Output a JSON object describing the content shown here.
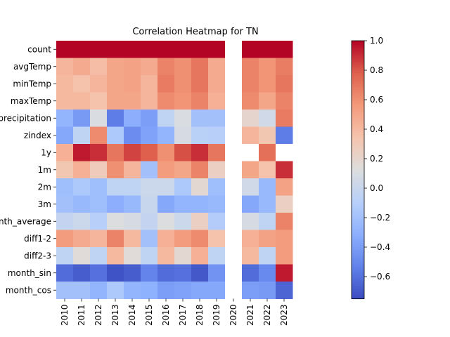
{
  "chart_data": {
    "type": "heatmap",
    "title": "Correlation Heatmap for TN",
    "xlabel": "",
    "ylabel": "",
    "x_categories": [
      "2010",
      "2011",
      "2012",
      "2013",
      "2014",
      "2015",
      "2016",
      "2017",
      "2018",
      "2019",
      "2020",
      "2021",
      "2022",
      "2023"
    ],
    "y_categories": [
      "count",
      "avgTemp",
      "minTemp",
      "maxTemp",
      "precipitation",
      "zindex",
      "1y",
      "1m",
      "2m",
      "3m",
      "month_average",
      "diff1-2",
      "diff2-3",
      "month_sin",
      "month_cos"
    ],
    "values": [
      [
        1.0,
        1.0,
        1.0,
        1.0,
        1.0,
        1.0,
        1.0,
        1.0,
        1.0,
        1.0,
        null,
        1.0,
        1.0,
        1.0
      ],
      [
        0.42,
        0.48,
        0.38,
        0.5,
        0.52,
        0.48,
        0.65,
        0.6,
        0.7,
        0.48,
        null,
        0.65,
        0.58,
        0.67
      ],
      [
        0.4,
        0.35,
        0.42,
        0.5,
        0.52,
        0.42,
        0.68,
        0.6,
        0.7,
        0.48,
        null,
        0.65,
        0.58,
        0.7
      ],
      [
        0.4,
        0.4,
        0.35,
        0.5,
        0.5,
        0.42,
        0.62,
        0.58,
        0.65,
        0.45,
        null,
        0.62,
        0.5,
        0.65
      ],
      [
        -0.28,
        -0.42,
        0.1,
        -0.55,
        -0.32,
        -0.4,
        -0.05,
        0.1,
        -0.2,
        -0.2,
        null,
        0.2,
        0.05,
        0.68
      ],
      [
        -0.35,
        -0.05,
        0.62,
        -0.15,
        -0.48,
        -0.38,
        -0.28,
        0.08,
        -0.08,
        -0.1,
        null,
        0.42,
        0.32,
        -0.55
      ],
      [
        0.45,
        0.95,
        0.9,
        0.7,
        0.85,
        0.78,
        0.6,
        0.82,
        0.9,
        0.7,
        null,
        null,
        0.72,
        null
      ],
      [
        0.32,
        0.45,
        0.28,
        0.6,
        0.42,
        -0.2,
        0.55,
        0.5,
        0.65,
        0.25,
        null,
        0.5,
        0.35,
        0.9
      ],
      [
        -0.22,
        -0.15,
        -0.22,
        -0.05,
        -0.05,
        0.02,
        0.02,
        -0.15,
        0.18,
        -0.22,
        null,
        0.05,
        -0.25,
        0.52
      ],
      [
        -0.2,
        -0.25,
        -0.22,
        -0.32,
        -0.25,
        0.0,
        -0.35,
        -0.28,
        -0.28,
        -0.25,
        null,
        -0.35,
        -0.25,
        0.25
      ],
      [
        -0.02,
        0.02,
        -0.1,
        0.12,
        0.08,
        -0.02,
        0.12,
        0.02,
        0.25,
        -0.12,
        null,
        0.08,
        -0.05,
        0.65
      ],
      [
        0.55,
        0.48,
        0.42,
        0.65,
        0.4,
        -0.2,
        0.45,
        0.55,
        0.62,
        0.35,
        null,
        0.45,
        0.52,
        0.55
      ],
      [
        -0.05,
        0.15,
        -0.05,
        0.4,
        0.15,
        -0.05,
        0.4,
        0.18,
        0.45,
        -0.05,
        null,
        0.4,
        -0.05,
        0.55
      ],
      [
        -0.62,
        -0.68,
        -0.6,
        -0.72,
        -0.68,
        -0.52,
        -0.62,
        -0.6,
        -0.7,
        -0.45,
        null,
        -0.62,
        -0.5,
        0.95
      ],
      [
        -0.2,
        -0.2,
        -0.28,
        -0.15,
        -0.28,
        -0.3,
        -0.4,
        -0.38,
        -0.35,
        -0.35,
        null,
        -0.4,
        -0.42,
        -0.65
      ]
    ],
    "colormap": "coolwarm",
    "vmin": -0.75,
    "vmax": 1.0,
    "colorbar_ticks": [
      1.0,
      0.8,
      0.6,
      0.4,
      0.2,
      0.0,
      -0.2,
      -0.4,
      -0.6
    ],
    "colorbar_tick_labels": [
      "1.0",
      "0.8",
      "0.6",
      "0.4",
      "0.2",
      "0.0",
      "−0.2",
      "−0.4",
      "−0.6"
    ],
    "missing_color": "#ffffff"
  }
}
